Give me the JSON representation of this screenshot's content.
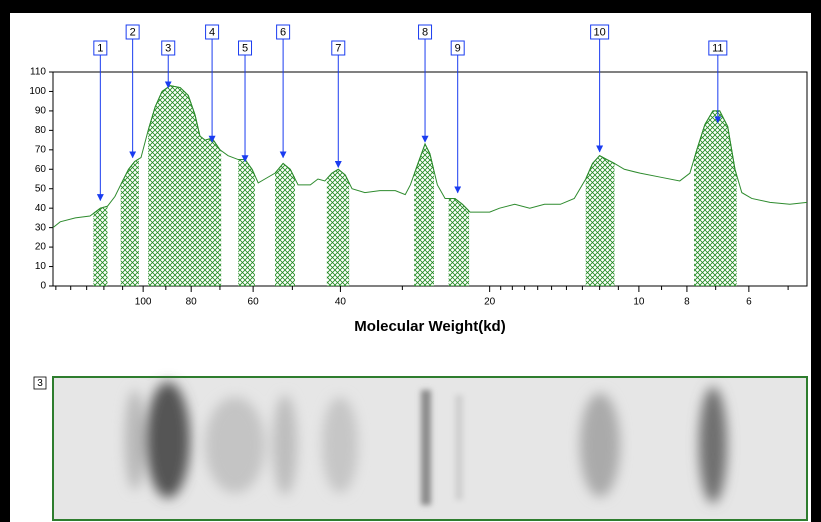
{
  "chart_data": {
    "type": "densitometry",
    "xlabel": "Molecular Weight(kd)",
    "xscale": "log",
    "xlim": [
      152,
      4.58
    ],
    "xticks": [
      100,
      80,
      60,
      40,
      20,
      10,
      8,
      6
    ],
    "xminorticks": [
      150,
      140,
      130,
      120,
      110,
      90,
      70,
      50,
      30,
      19,
      18,
      17,
      16,
      15,
      14,
      13,
      12,
      11,
      9,
      7,
      5
    ],
    "ylim": [
      0,
      110
    ],
    "yticks": [
      0,
      10,
      20,
      30,
      40,
      50,
      60,
      70,
      80,
      90,
      100,
      110
    ],
    "x": [
      152,
      147,
      137,
      128,
      122,
      118,
      114,
      111,
      107,
      104,
      101,
      97.7,
      94.6,
      91.6,
      88.2,
      84.2,
      81.1,
      78.6,
      76.8,
      75.0,
      72.6,
      70.0,
      67.4,
      64.3,
      62.3,
      60.3,
      58.6,
      56.8,
      54.2,
      52.2,
      50.5,
      48.7,
      46.0,
      44.4,
      43.0,
      41.6,
      40.4,
      39.1,
      37.9,
      35.7,
      33.3,
      31.0,
      29.6,
      28.9,
      27.9,
      27.0,
      26.4,
      25.5,
      24.6,
      23.5,
      22.7,
      21.9,
      20.9,
      20.0,
      19.1,
      17.8,
      16.6,
      15.5,
      14.4,
      13.5,
      12.8,
      12.4,
      12.0,
      11.6,
      11.2,
      10.7,
      9.95,
      9.07,
      8.27,
      7.89,
      7.64,
      7.36,
      7.09,
      6.87,
      6.62,
      6.4,
      6.2,
      5.92,
      5.44,
      4.96,
      4.58
    ],
    "series": [
      {
        "color": "#2e8b2e",
        "values": [
          30,
          33,
          35,
          36,
          40,
          41,
          46,
          52,
          60,
          64,
          66,
          80,
          92,
          100,
          103,
          102,
          98,
          88,
          77,
          75,
          76,
          70,
          67,
          65,
          65,
          60,
          53,
          55,
          58,
          63,
          60,
          52,
          52,
          55,
          54,
          58,
          60,
          57,
          50,
          48,
          49,
          49,
          47,
          52,
          63,
          73,
          68,
          52,
          45,
          45,
          42,
          38,
          38,
          38,
          40,
          42,
          40,
          42,
          42,
          45,
          55,
          63,
          67,
          65,
          63,
          60,
          58,
          56,
          54,
          58,
          70,
          83,
          90,
          90,
          82,
          60,
          48,
          45,
          43,
          42,
          43
        ]
      }
    ],
    "band_color": "#1f8a1f",
    "bands": [
      {
        "start": 126,
        "end": 118
      },
      {
        "start": 111,
        "end": 102
      },
      {
        "start": 97.7,
        "end": 76.8
      },
      {
        "start": 76.8,
        "end": 69.6
      },
      {
        "start": 64.3,
        "end": 59.5
      },
      {
        "start": 54.2,
        "end": 49.4
      },
      {
        "start": 42.6,
        "end": 38.4
      },
      {
        "start": 28.4,
        "end": 25.9
      },
      {
        "start": 24.2,
        "end": 22.0
      },
      {
        "start": 12.8,
        "end": 11.2
      },
      {
        "start": 7.74,
        "end": 6.35
      }
    ],
    "peak_color": "#1a3cf0",
    "peaks": [
      {
        "label": "1",
        "x": 122,
        "y": 44
      },
      {
        "label": "2",
        "x": 105,
        "y": 66
      },
      {
        "label": "3",
        "x": 89,
        "y": 102
      },
      {
        "label": "4",
        "x": 72.6,
        "y": 74
      },
      {
        "label": "5",
        "x": 62.3,
        "y": 64
      },
      {
        "label": "6",
        "x": 52.2,
        "y": 66
      },
      {
        "label": "7",
        "x": 40.4,
        "y": 61
      },
      {
        "label": "8",
        "x": 27.0,
        "y": 74
      },
      {
        "label": "9",
        "x": 23.2,
        "y": 48
      },
      {
        "label": "10",
        "x": 12.0,
        "y": 69
      },
      {
        "label": "11",
        "x": 6.93,
        "y": 84
      }
    ]
  },
  "gel": {
    "lane_label": "3"
  }
}
